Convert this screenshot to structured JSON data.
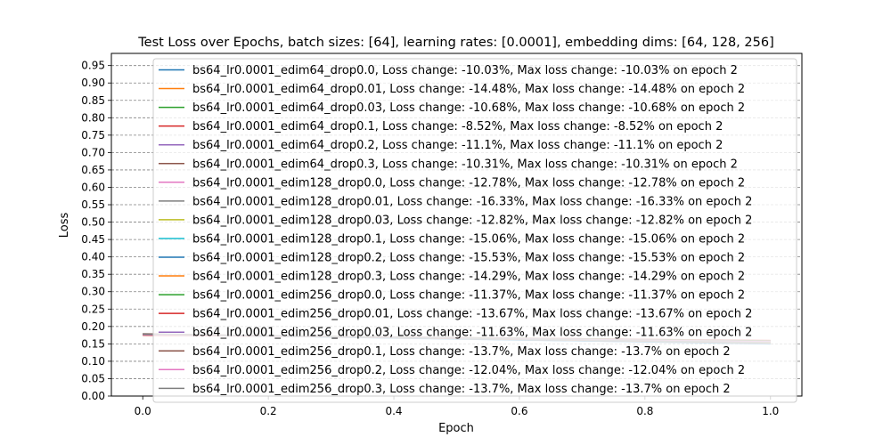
{
  "chart_data": {
    "type": "line",
    "title": "Test Loss over Epochs, batch sizes: [64], learning rates: [0.0001], embedding dims: [64, 128, 256]",
    "xlabel": "Epoch",
    "ylabel": "Loss",
    "xlim": [
      -0.05,
      1.05
    ],
    "ylim": [
      0.0,
      0.985
    ],
    "x_ticks": [
      "0.0",
      "0.2",
      "0.4",
      "0.6",
      "0.8",
      "1.0"
    ],
    "y_ticks": [
      "0.00",
      "0.05",
      "0.10",
      "0.15",
      "0.20",
      "0.25",
      "0.30",
      "0.35",
      "0.40",
      "0.45",
      "0.50",
      "0.55",
      "0.60",
      "0.65",
      "0.70",
      "0.75",
      "0.80",
      "0.85",
      "0.90",
      "0.95"
    ],
    "grid": "horizontal dashed",
    "legend_position": "upper right",
    "x": [
      0,
      1
    ],
    "series": [
      {
        "name": "bs64_lr0.0001_edim64_drop0.0, Loss change: -10.03%, Max loss change: -10.03% on epoch 2",
        "color": "#1f77b4",
        "values": [
          0.176,
          0.159
        ]
      },
      {
        "name": "bs64_lr0.0001_edim64_drop0.01, Loss change: -14.48%, Max loss change: -14.48% on epoch 2",
        "color": "#ff7f0e",
        "values": [
          0.178,
          0.152
        ]
      },
      {
        "name": "bs64_lr0.0001_edim64_drop0.03, Loss change: -10.68%, Max loss change: -10.68% on epoch 2",
        "color": "#2ca02c",
        "values": [
          0.177,
          0.158
        ]
      },
      {
        "name": "bs64_lr0.0001_edim64_drop0.1, Loss change: -8.52%, Max loss change: -8.52% on epoch 2",
        "color": "#d62728",
        "values": [
          0.175,
          0.16
        ]
      },
      {
        "name": "bs64_lr0.0001_edim64_drop0.2, Loss change: -11.1%, Max loss change: -11.1% on epoch 2",
        "color": "#9467bd",
        "values": [
          0.177,
          0.157
        ]
      },
      {
        "name": "bs64_lr0.0001_edim64_drop0.3, Loss change: -10.31%, Max loss change: -10.31% on epoch 2",
        "color": "#8c564b",
        "values": [
          0.177,
          0.159
        ]
      },
      {
        "name": "bs64_lr0.0001_edim128_drop0.0, Loss change: -12.78%, Max loss change: -12.78% on epoch 2",
        "color": "#e377c2",
        "values": [
          0.177,
          0.154
        ]
      },
      {
        "name": "bs64_lr0.0001_edim128_drop0.01, Loss change: -16.33%, Max loss change: -16.33% on epoch 2",
        "color": "#7f7f7f",
        "values": [
          0.179,
          0.15
        ]
      },
      {
        "name": "bs64_lr0.0001_edim128_drop0.03, Loss change: -12.82%, Max loss change: -12.82% on epoch 2",
        "color": "#bcbd22",
        "values": [
          0.177,
          0.154
        ]
      },
      {
        "name": "bs64_lr0.0001_edim128_drop0.1, Loss change: -15.06%, Max loss change: -15.06% on epoch 2",
        "color": "#17becf",
        "values": [
          0.178,
          0.151
        ]
      },
      {
        "name": "bs64_lr0.0001_edim128_drop0.2, Loss change: -15.53%, Max loss change: -15.53% on epoch 2",
        "color": "#1f77b4",
        "values": [
          0.178,
          0.15
        ]
      },
      {
        "name": "bs64_lr0.0001_edim128_drop0.3, Loss change: -14.29%, Max loss change: -14.29% on epoch 2",
        "color": "#ff7f0e",
        "values": [
          0.178,
          0.153
        ]
      },
      {
        "name": "bs64_lr0.0001_edim256_drop0.0, Loss change: -11.37%, Max loss change: -11.37% on epoch 2",
        "color": "#2ca02c",
        "values": [
          0.177,
          0.157
        ]
      },
      {
        "name": "bs64_lr0.0001_edim256_drop0.01, Loss change: -13.67%, Max loss change: -13.67% on epoch 2",
        "color": "#d62728",
        "values": [
          0.178,
          0.154
        ]
      },
      {
        "name": "bs64_lr0.0001_edim256_drop0.03, Loss change: -11.63%, Max loss change: -11.63% on epoch 2",
        "color": "#9467bd",
        "values": [
          0.177,
          0.156
        ]
      },
      {
        "name": "bs64_lr0.0001_edim256_drop0.1, Loss change: -13.7%, Max loss change: -13.7% on epoch 2",
        "color": "#8c564b",
        "values": [
          0.178,
          0.154
        ]
      },
      {
        "name": "bs64_lr0.0001_edim256_drop0.2, Loss change: -12.04%, Max loss change: -12.04% on epoch 2",
        "color": "#e377c2",
        "values": [
          0.177,
          0.156
        ]
      },
      {
        "name": "bs64_lr0.0001_edim256_drop0.3, Loss change: -13.7%, Max loss change: -13.7% on epoch 2",
        "color": "#7f7f7f",
        "values": [
          0.178,
          0.154
        ]
      }
    ]
  }
}
